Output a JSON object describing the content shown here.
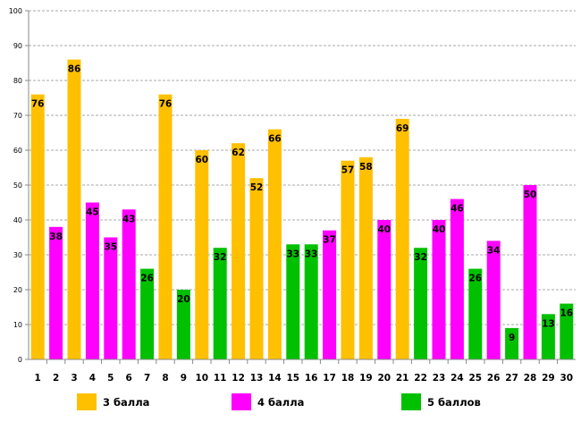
{
  "chart_data": {
    "type": "bar",
    "title": "",
    "xlabel": "",
    "ylabel": "",
    "ylim": [
      0,
      100
    ],
    "yticks": [
      0,
      10,
      20,
      30,
      40,
      50,
      60,
      70,
      80,
      90,
      100
    ],
    "grid": true,
    "legend_position": "bottom",
    "categories": [
      "1",
      "2",
      "3",
      "4",
      "5",
      "6",
      "7",
      "8",
      "9",
      "10",
      "11",
      "12",
      "13",
      "14",
      "15",
      "16",
      "17",
      "18",
      "19",
      "20",
      "21",
      "22",
      "23",
      "24",
      "25",
      "26",
      "27",
      "28",
      "29",
      "30"
    ],
    "values": [
      76,
      38,
      86,
      45,
      35,
      43,
      26,
      76,
      20,
      60,
      32,
      62,
      52,
      66,
      33,
      33,
      37,
      57,
      58,
      40,
      69,
      32,
      40,
      46,
      26,
      34,
      9,
      50,
      13,
      16
    ],
    "groups": [
      "3 балла",
      "4 балла",
      "3 балла",
      "4 балла",
      "4 балла",
      "4 балла",
      "5 баллов",
      "3 балла",
      "5 баллов",
      "3 балла",
      "5 баллов",
      "3 балла",
      "3 балла",
      "3 балла",
      "5 баллов",
      "5 баллов",
      "4 балла",
      "3 балла",
      "3 балла",
      "4 балла",
      "3 балла",
      "5 баллов",
      "4 балла",
      "4 балла",
      "5 баллов",
      "4 балла",
      "5 баллов",
      "4 балла",
      "5 баллов",
      "5 баллов"
    ],
    "legend": [
      {
        "label": "3 балла",
        "color": "#FFC000"
      },
      {
        "label": "4 балла",
        "color": "#FF00FF"
      },
      {
        "label": "5 баллов",
        "color": "#00C000"
      }
    ]
  }
}
